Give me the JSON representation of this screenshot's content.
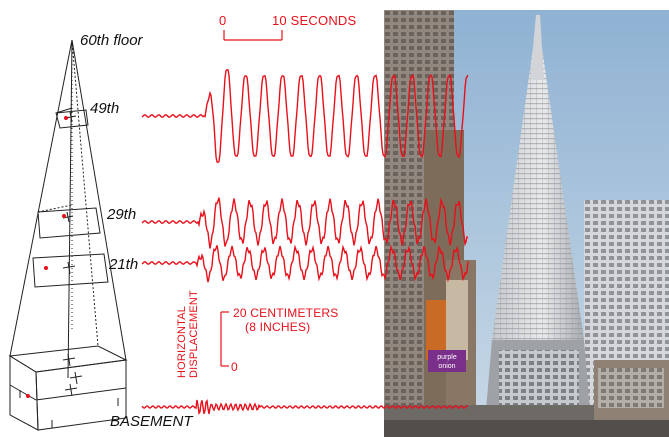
{
  "building_labels": {
    "top": "60th floor",
    "floor_49": "49th",
    "floor_29": "29th",
    "floor_21": "21th",
    "basement": "BASEMENT"
  },
  "time_scale": {
    "start": "0",
    "end": "10 SECONDS"
  },
  "displacement_scale": {
    "axis_label_line1": "HORIZONTAL",
    "axis_label_line2": "DISPLACEMENT",
    "top_value": "20 CENTIMETERS",
    "top_value_alt": "(8 INCHES)",
    "bottom_value": "0"
  },
  "photo": {
    "sign_text": "purple onion"
  },
  "colors": {
    "trace": "#e8101a",
    "outline": "#222222",
    "sky": "#a9c4dc"
  }
}
